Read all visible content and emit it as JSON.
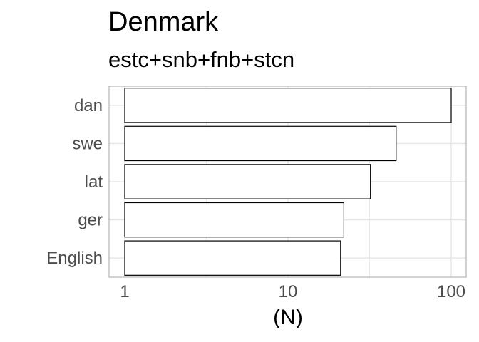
{
  "chart_data": {
    "type": "bar",
    "orientation": "horizontal",
    "title": "Denmark",
    "subtitle": "estc+snb+fnb+stcn",
    "categories": [
      "dan",
      "swe",
      "lat",
      "ger",
      "English"
    ],
    "values": [
      100,
      46,
      32,
      22,
      21
    ],
    "xlabel": "(N)",
    "ylabel": "",
    "x_scale": "log10",
    "xlim": [
      1,
      100
    ],
    "x_ticks": [
      1,
      10,
      100
    ],
    "x_tick_labels": [
      "1",
      "10",
      "100"
    ],
    "grid": true,
    "bar_fill": "#ffffff",
    "bar_stroke": "#000000",
    "panel_border": "#b3b3b3",
    "grid_color": "#e5e5e5"
  }
}
